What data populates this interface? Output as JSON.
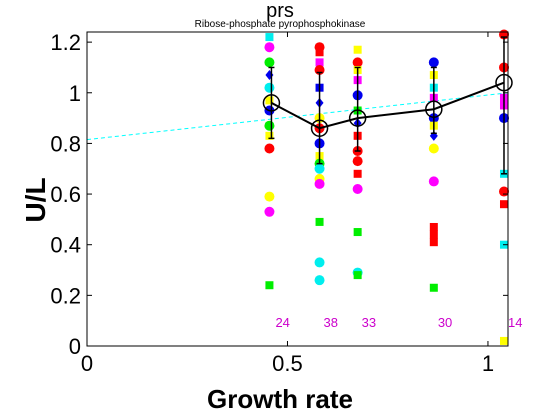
{
  "chart_data": {
    "type": "scatter",
    "title": "prs",
    "subtitle": "Ribose-phosphate pyrophosphokinase",
    "xlabel": "Growth rate",
    "ylabel": "U/L",
    "xlim": [
      0,
      1.05
    ],
    "ylim": [
      0,
      1.24
    ],
    "x_ticks": [
      0,
      0.5,
      1
    ],
    "x_tick_labels": [
      "0",
      "0.5",
      "1"
    ],
    "y_ticks": [
      0,
      0.2,
      0.4,
      0.6,
      0.8,
      1.0,
      1.2
    ],
    "y_tick_labels": [
      "0",
      "0.2",
      "0.4",
      "0.6",
      "0.8",
      "1",
      "1.2"
    ],
    "grid": false,
    "colors": {
      "red": "#ff0000",
      "green": "#00ee00",
      "blue": "#0000ee",
      "cyan": "#00eeee",
      "magenta": "#ff00ff",
      "yellow": "#ffff00",
      "mean": "#000000",
      "fit": "#00ffff",
      "count_label": "#cc00cc"
    },
    "mean_line": {
      "x": [
        0.46,
        0.58,
        0.675,
        0.865,
        1.04
      ],
      "y": [
        0.96,
        0.86,
        0.9,
        0.935,
        1.04
      ],
      "err_low": [
        0.82,
        0.72,
        0.77,
        0.84,
        0.68
      ],
      "err_high": [
        1.1,
        1.08,
        1.1,
        1.1,
        1.22
      ]
    },
    "fit_line": {
      "x": [
        0,
        1.05
      ],
      "y": [
        0.815,
        1.0
      ]
    },
    "counts": [
      {
        "x": 0.46,
        "label": "24"
      },
      {
        "x": 0.58,
        "label": "38"
      },
      {
        "x": 0.675,
        "label": "33"
      },
      {
        "x": 0.865,
        "label": "30"
      },
      {
        "x": 1.04,
        "label": "14"
      }
    ],
    "count_label_y": 0.09,
    "points": [
      {
        "x": 0.455,
        "y": 1.22,
        "shape": "square",
        "color": "cyan"
      },
      {
        "x": 0.455,
        "y": 1.18,
        "shape": "circle",
        "color": "magenta"
      },
      {
        "x": 0.455,
        "y": 1.12,
        "shape": "circle",
        "color": "green"
      },
      {
        "x": 0.455,
        "y": 1.07,
        "shape": "diamond",
        "color": "blue"
      },
      {
        "x": 0.455,
        "y": 1.02,
        "shape": "circle",
        "color": "cyan"
      },
      {
        "x": 0.455,
        "y": 0.97,
        "shape": "square",
        "color": "yellow"
      },
      {
        "x": 0.455,
        "y": 0.93,
        "shape": "circle",
        "color": "blue"
      },
      {
        "x": 0.455,
        "y": 0.87,
        "shape": "circle",
        "color": "green"
      },
      {
        "x": 0.455,
        "y": 0.83,
        "shape": "square",
        "color": "yellow"
      },
      {
        "x": 0.455,
        "y": 0.78,
        "shape": "circle",
        "color": "red"
      },
      {
        "x": 0.455,
        "y": 0.59,
        "shape": "circle",
        "color": "yellow"
      },
      {
        "x": 0.455,
        "y": 0.53,
        "shape": "circle",
        "color": "magenta"
      },
      {
        "x": 0.455,
        "y": 0.24,
        "shape": "square",
        "color": "green"
      },
      {
        "x": 0.58,
        "y": 1.18,
        "shape": "circle",
        "color": "red"
      },
      {
        "x": 0.58,
        "y": 1.16,
        "shape": "square",
        "color": "red"
      },
      {
        "x": 0.58,
        "y": 1.12,
        "shape": "square",
        "color": "magenta"
      },
      {
        "x": 0.58,
        "y": 1.09,
        "shape": "circle",
        "color": "red"
      },
      {
        "x": 0.58,
        "y": 1.02,
        "shape": "square",
        "color": "blue"
      },
      {
        "x": 0.58,
        "y": 0.96,
        "shape": "diamond",
        "color": "blue"
      },
      {
        "x": 0.58,
        "y": 0.9,
        "shape": "circle",
        "color": "yellow"
      },
      {
        "x": 0.58,
        "y": 0.86,
        "shape": "circle",
        "color": "red"
      },
      {
        "x": 0.58,
        "y": 0.8,
        "shape": "circle",
        "color": "blue"
      },
      {
        "x": 0.58,
        "y": 0.75,
        "shape": "square",
        "color": "yellow"
      },
      {
        "x": 0.58,
        "y": 0.72,
        "shape": "circle",
        "color": "green"
      },
      {
        "x": 0.58,
        "y": 0.7,
        "shape": "circle",
        "color": "cyan"
      },
      {
        "x": 0.58,
        "y": 0.66,
        "shape": "circle",
        "color": "yellow"
      },
      {
        "x": 0.58,
        "y": 0.64,
        "shape": "circle",
        "color": "magenta"
      },
      {
        "x": 0.58,
        "y": 0.49,
        "shape": "square",
        "color": "green"
      },
      {
        "x": 0.58,
        "y": 0.33,
        "shape": "circle",
        "color": "cyan"
      },
      {
        "x": 0.58,
        "y": 0.26,
        "shape": "circle",
        "color": "cyan"
      },
      {
        "x": 0.675,
        "y": 1.17,
        "shape": "square",
        "color": "yellow"
      },
      {
        "x": 0.675,
        "y": 1.12,
        "shape": "circle",
        "color": "red"
      },
      {
        "x": 0.675,
        "y": 1.09,
        "shape": "square",
        "color": "yellow"
      },
      {
        "x": 0.675,
        "y": 1.05,
        "shape": "square",
        "color": "magenta"
      },
      {
        "x": 0.675,
        "y": 0.99,
        "shape": "circle",
        "color": "blue"
      },
      {
        "x": 0.675,
        "y": 0.93,
        "shape": "square",
        "color": "green"
      },
      {
        "x": 0.675,
        "y": 0.88,
        "shape": "diamond",
        "color": "blue"
      },
      {
        "x": 0.675,
        "y": 0.83,
        "shape": "square",
        "color": "red"
      },
      {
        "x": 0.675,
        "y": 0.77,
        "shape": "circle",
        "color": "red"
      },
      {
        "x": 0.675,
        "y": 0.73,
        "shape": "circle",
        "color": "red"
      },
      {
        "x": 0.675,
        "y": 0.68,
        "shape": "square",
        "color": "red"
      },
      {
        "x": 0.675,
        "y": 0.62,
        "shape": "circle",
        "color": "magenta"
      },
      {
        "x": 0.675,
        "y": 0.45,
        "shape": "square",
        "color": "green"
      },
      {
        "x": 0.675,
        "y": 0.29,
        "shape": "circle",
        "color": "cyan"
      },
      {
        "x": 0.675,
        "y": 0.28,
        "shape": "square",
        "color": "green"
      },
      {
        "x": 0.865,
        "y": 1.12,
        "shape": "circle",
        "color": "blue"
      },
      {
        "x": 0.865,
        "y": 1.07,
        "shape": "square",
        "color": "yellow"
      },
      {
        "x": 0.865,
        "y": 1.02,
        "shape": "square",
        "color": "cyan"
      },
      {
        "x": 0.865,
        "y": 0.98,
        "shape": "square",
        "color": "magenta"
      },
      {
        "x": 0.865,
        "y": 0.9,
        "shape": "circle",
        "color": "blue"
      },
      {
        "x": 0.865,
        "y": 0.87,
        "shape": "square",
        "color": "yellow"
      },
      {
        "x": 0.865,
        "y": 0.83,
        "shape": "diamond",
        "color": "blue"
      },
      {
        "x": 0.865,
        "y": 0.78,
        "shape": "circle",
        "color": "yellow"
      },
      {
        "x": 0.865,
        "y": 0.65,
        "shape": "circle",
        "color": "magenta"
      },
      {
        "x": 0.865,
        "y": 0.47,
        "shape": "square",
        "color": "red"
      },
      {
        "x": 0.865,
        "y": 0.44,
        "shape": "square",
        "color": "red"
      },
      {
        "x": 0.865,
        "y": 0.41,
        "shape": "square",
        "color": "red"
      },
      {
        "x": 0.865,
        "y": 0.23,
        "shape": "square",
        "color": "green"
      },
      {
        "x": 1.04,
        "y": 1.23,
        "shape": "circle",
        "color": "red"
      },
      {
        "x": 1.04,
        "y": 1.1,
        "shape": "circle",
        "color": "red"
      },
      {
        "x": 1.04,
        "y": 0.98,
        "shape": "square",
        "color": "magenta"
      },
      {
        "x": 1.04,
        "y": 0.95,
        "shape": "square",
        "color": "magenta"
      },
      {
        "x": 1.04,
        "y": 0.9,
        "shape": "circle",
        "color": "blue"
      },
      {
        "x": 1.04,
        "y": 0.68,
        "shape": "square",
        "color": "cyan"
      },
      {
        "x": 1.04,
        "y": 0.61,
        "shape": "circle",
        "color": "red"
      },
      {
        "x": 1.04,
        "y": 0.56,
        "shape": "square",
        "color": "red"
      },
      {
        "x": 1.04,
        "y": 0.4,
        "shape": "square",
        "color": "cyan"
      },
      {
        "x": 1.04,
        "y": 0.02,
        "shape": "square",
        "color": "yellow"
      }
    ]
  }
}
